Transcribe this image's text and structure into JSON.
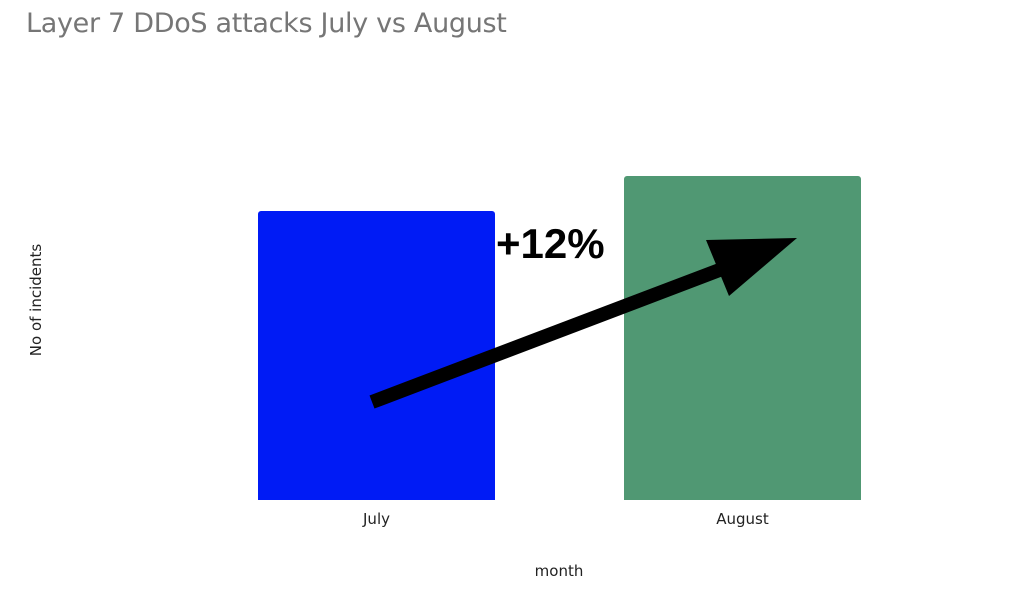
{
  "chart_data": {
    "type": "bar",
    "title": "Layer 7 DDoS attacks July vs August",
    "xlabel": "month",
    "ylabel": "No of incidents",
    "categories": [
      "July",
      "August"
    ],
    "values": [
      100,
      112
    ],
    "colors": [
      "#001BF5",
      "#509873"
    ],
    "annotation": "+12%",
    "grid": false,
    "legend": null,
    "y_ticks_shown": false
  },
  "annotation_label": "+12%"
}
